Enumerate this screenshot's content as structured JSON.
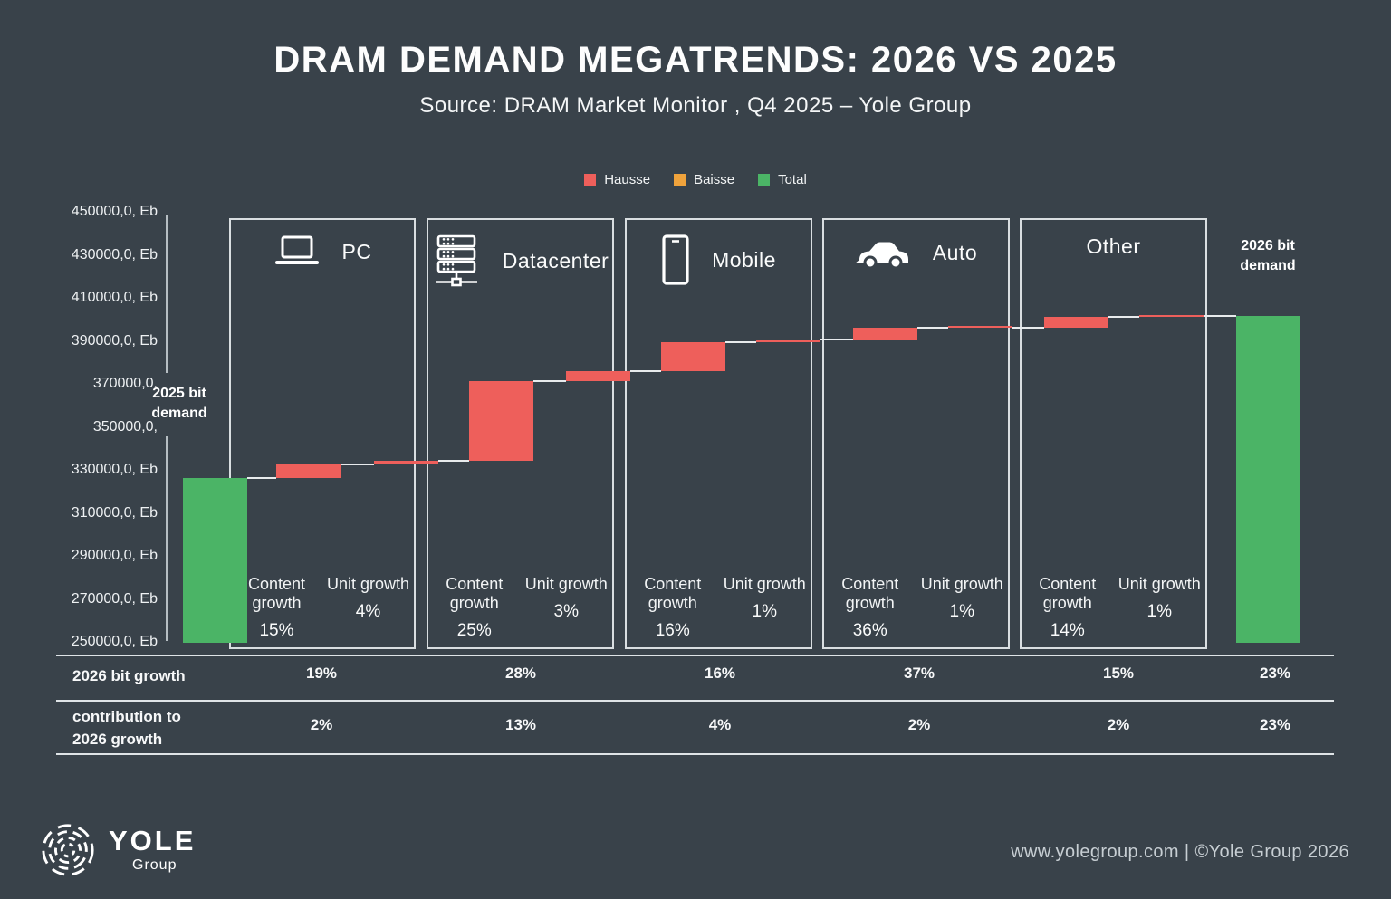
{
  "title": "DRAM DEMAND MEGATRENDS: 2026 VS 2025",
  "subtitle": "Source: DRAM Market Monitor , Q4 2025 – Yole Group",
  "legend": [
    {
      "label": "Hausse",
      "color": "#ee5f5b"
    },
    {
      "label": "Baisse",
      "color": "#f0a33c"
    },
    {
      "label": "Total",
      "color": "#4bb466"
    }
  ],
  "colors": {
    "background": "#39424a",
    "increase": "#ee5f5b",
    "decrease": "#f0a33c",
    "total": "#4bb466",
    "panel_border": "#d9dee1",
    "connector": "#e8ebed"
  },
  "y_axis": {
    "unit": "Eb",
    "tick_labels": [
      "450000,0, Eb",
      "430000,0, Eb",
      "410000,0, Eb",
      "390000,0, Eb",
      "370000,0,",
      "350000,0,",
      "330000,0, Eb",
      "310000,0, Eb",
      "290000,0, Eb",
      "270000,0, Eb",
      "250000,0, Eb"
    ]
  },
  "annotations": {
    "start_label": "2025 bit demand",
    "end_label": "2026 bit demand"
  },
  "growth_row_labels": {
    "content": "Content growth",
    "unit": "Unit growth"
  },
  "panels": [
    {
      "name": "PC",
      "icon": "laptop-icon",
      "content_growth": "15%",
      "unit_growth": "4%"
    },
    {
      "name": "Datacenter",
      "icon": "server-icon",
      "content_growth": "25%",
      "unit_growth": "3%"
    },
    {
      "name": "Mobile",
      "icon": "smartphone-icon",
      "content_growth": "16%",
      "unit_growth": "1%"
    },
    {
      "name": "Auto",
      "icon": "car-icon",
      "content_growth": "36%",
      "unit_growth": "1%"
    },
    {
      "name": "Other",
      "icon": null,
      "content_growth": "14%",
      "unit_growth": "1%"
    }
  ],
  "chart_data": {
    "type": "waterfall",
    "title": "DRAM DEMAND MEGATRENDS: 2026 VS 2025",
    "y_unit": "Eb",
    "y_min": 250000,
    "y_max": 450000,
    "y_tick_step": 20000,
    "steps": [
      {
        "label": "2025 bit demand",
        "kind": "total",
        "value": 326600
      },
      {
        "category": "PC",
        "label": "Content growth",
        "kind": "increase",
        "delta": 6300
      },
      {
        "category": "PC",
        "label": "Unit growth",
        "kind": "increase",
        "delta": 1700
      },
      {
        "category": "Datacenter",
        "label": "Content growth",
        "kind": "increase",
        "delta": 37000
      },
      {
        "category": "Datacenter",
        "label": "Unit growth",
        "kind": "increase",
        "delta": 4600
      },
      {
        "category": "Mobile",
        "label": "Content growth",
        "kind": "increase",
        "delta": 13500
      },
      {
        "category": "Mobile",
        "label": "Unit growth",
        "kind": "increase",
        "delta": 1300
      },
      {
        "category": "Auto",
        "label": "Content growth",
        "kind": "increase",
        "delta": 5500
      },
      {
        "category": "Auto",
        "label": "Unit growth",
        "kind": "increase",
        "delta": 200
      },
      {
        "category": "Other",
        "label": "Content growth",
        "kind": "increase",
        "delta": 5000
      },
      {
        "category": "Other",
        "label": "Unit growth",
        "kind": "increase",
        "delta": 300
      },
      {
        "label": "2026 bit demand",
        "kind": "total",
        "value": 402000
      }
    ]
  },
  "table": {
    "columns": [
      "PC",
      "Datacenter",
      "Mobile",
      "Auto",
      "Other",
      "Total"
    ],
    "rows": [
      {
        "label": "2026 bit growth",
        "values": [
          "19%",
          "28%",
          "16%",
          "37%",
          "15%",
          "23%"
        ]
      },
      {
        "label": "contribution to 2026 growth",
        "values": [
          "2%",
          "13%",
          "4%",
          "2%",
          "2%",
          "23%"
        ]
      }
    ]
  },
  "footer": {
    "logo_title": "YOLE",
    "logo_subtitle": "Group",
    "credit": "www.yolegroup.com | ©Yole Group 2026"
  }
}
